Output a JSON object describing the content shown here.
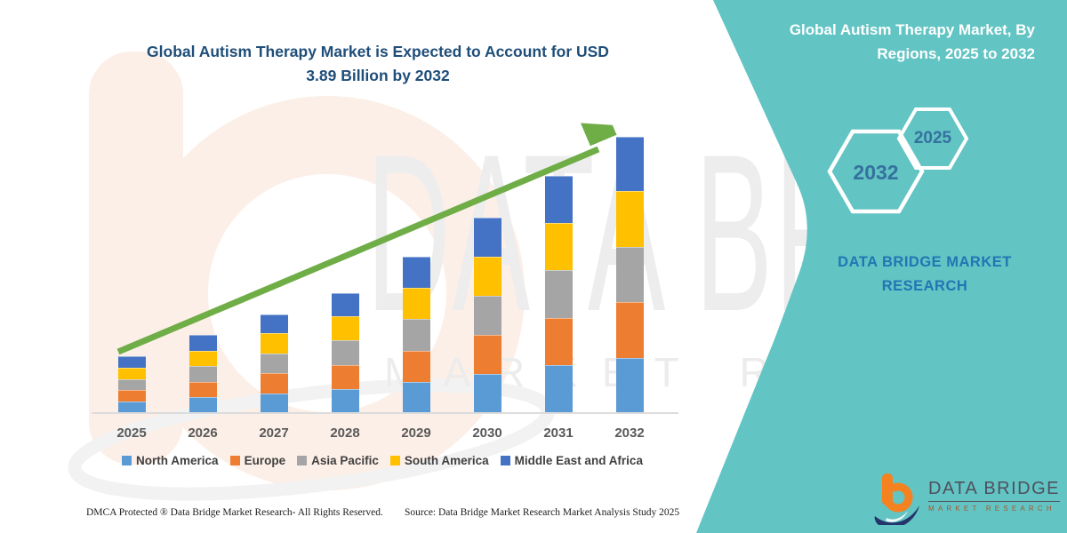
{
  "main_title": {
    "line1": "Global Autism Therapy Market is Expected to Account for USD",
    "line2": "3.89 Billion by 2032"
  },
  "panel": {
    "title_line1": "Global Autism Therapy Market, By",
    "title_line2": "Regions, 2025 to 2032",
    "hexagon_large_label": "2032",
    "hexagon_small_label": "2025",
    "brand_line1": "DATA BRIDGE MARKET",
    "brand_line2": "RESEARCH",
    "accent_color": "#5CC2C1"
  },
  "logo": {
    "name": "DATA BRIDGE",
    "tagline": "MARKET RESEARCH"
  },
  "footer": {
    "left": "DMCA Protected ® Data Bridge Market Research-  All Rights Reserved.",
    "source": "Source: Data Bridge Market Research  Market Analysis Study 2025"
  },
  "watermark": {
    "line1": "DATA BRIDGE",
    "line2": "MARKET RESEARCH"
  },
  "chart_data": {
    "type": "bar",
    "stacked": true,
    "title": "Global Autism Therapy Market is Expected to Account for USD 3.89 Billion by 2032",
    "unit": "USD Billion",
    "categories": [
      "2025",
      "2026",
      "2027",
      "2028",
      "2029",
      "2030",
      "2031",
      "2032"
    ],
    "series": [
      {
        "name": "North America",
        "color": "#5B9BD5",
        "values": [
          0.16,
          0.22,
          0.28,
          0.34,
          0.44,
          0.55,
          0.67,
          0.78
        ]
      },
      {
        "name": "Europe",
        "color": "#ED7D31",
        "values": [
          0.16,
          0.22,
          0.28,
          0.34,
          0.44,
          0.55,
          0.67,
          0.78
        ]
      },
      {
        "name": "Asia Pacific",
        "color": "#A5A5A5",
        "values": [
          0.16,
          0.22,
          0.28,
          0.34,
          0.44,
          0.55,
          0.67,
          0.78
        ]
      },
      {
        "name": "South America",
        "color": "#FFC000",
        "values": [
          0.16,
          0.22,
          0.28,
          0.34,
          0.44,
          0.55,
          0.67,
          0.78
        ]
      },
      {
        "name": "Middle East and Africa",
        "color": "#4472C4",
        "values": [
          0.16,
          0.22,
          0.27,
          0.33,
          0.44,
          0.55,
          0.66,
          0.77
        ]
      }
    ],
    "totals": [
      0.8,
      1.1,
      1.39,
      1.69,
      2.2,
      2.75,
      3.34,
      3.89
    ],
    "ylim": [
      0,
      4.0
    ],
    "grid": false,
    "legend_position": "bottom",
    "trend_arrow": true,
    "trend_color": "#6FAD47"
  }
}
